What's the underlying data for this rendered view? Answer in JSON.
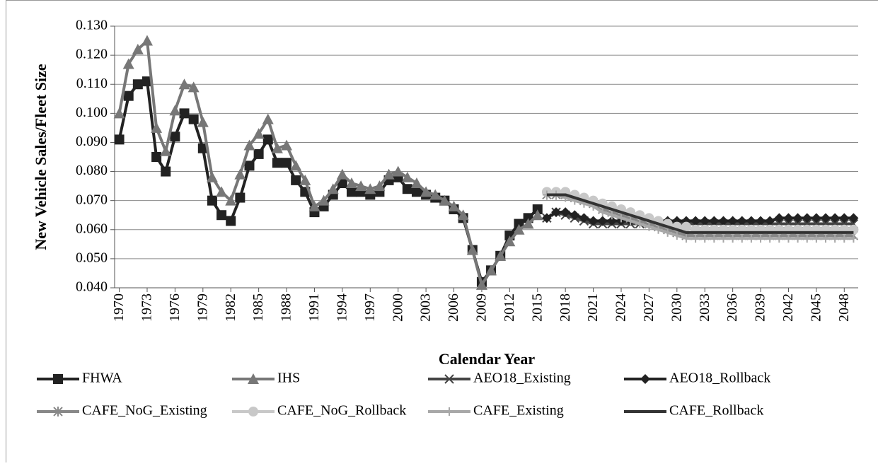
{
  "chart_data": {
    "type": "line",
    "xlabel": "Calendar Year",
    "ylabel": "New Vehicle Sales/Fleet Size",
    "x": [
      1970,
      1971,
      1972,
      1973,
      1974,
      1975,
      1976,
      1977,
      1978,
      1979,
      1980,
      1981,
      1982,
      1983,
      1984,
      1985,
      1986,
      1987,
      1988,
      1989,
      1990,
      1991,
      1992,
      1993,
      1994,
      1995,
      1996,
      1997,
      1998,
      1999,
      2000,
      2001,
      2002,
      2003,
      2004,
      2005,
      2006,
      2007,
      2008,
      2009,
      2010,
      2011,
      2012,
      2013,
      2014,
      2015,
      2016,
      2017,
      2018,
      2019,
      2020,
      2021,
      2022,
      2023,
      2024,
      2025,
      2026,
      2027,
      2028,
      2029,
      2030,
      2031,
      2032,
      2033,
      2034,
      2035,
      2036,
      2037,
      2038,
      2039,
      2040,
      2041,
      2042,
      2043,
      2044,
      2045,
      2046,
      2047,
      2048,
      2049
    ],
    "xlim": [
      1969.5,
      2049.5
    ],
    "xticks": [
      1970,
      1973,
      1976,
      1979,
      1982,
      1985,
      1988,
      1991,
      1994,
      1997,
      2000,
      2003,
      2006,
      2009,
      2012,
      2015,
      2018,
      2021,
      2024,
      2027,
      2030,
      2033,
      2036,
      2039,
      2042,
      2045,
      2048
    ],
    "ylim": [
      0.04,
      0.13
    ],
    "yticks": [
      {
        "value": 0.04,
        "label": "0.040"
      },
      {
        "value": 0.05,
        "label": "0.050"
      },
      {
        "value": 0.06,
        "label": "0.060"
      },
      {
        "value": 0.07,
        "label": "0.070"
      },
      {
        "value": 0.08,
        "label": "0.080"
      },
      {
        "value": 0.09,
        "label": "0.090"
      },
      {
        "value": 0.1,
        "label": "0.100"
      },
      {
        "value": 0.11,
        "label": "0.110"
      },
      {
        "value": 0.12,
        "label": "0.120"
      },
      {
        "value": 0.13,
        "label": "0.130"
      }
    ],
    "grid": true,
    "legend": "bottom",
    "series": [
      {
        "name": "FHWA",
        "color": "#222222",
        "marker": "square",
        "values": [
          0.091,
          0.106,
          0.11,
          0.111,
          0.085,
          0.08,
          0.092,
          0.1,
          0.098,
          0.088,
          0.07,
          0.065,
          0.063,
          0.071,
          0.082,
          0.086,
          0.091,
          0.083,
          0.083,
          0.077,
          0.073,
          0.066,
          0.068,
          0.072,
          0.076,
          0.073,
          0.073,
          0.072,
          0.073,
          0.077,
          0.078,
          0.074,
          0.073,
          0.072,
          0.071,
          0.07,
          0.067,
          0.064,
          0.053,
          0.042,
          0.046,
          0.051,
          0.058,
          0.062,
          0.064,
          0.067,
          null,
          null,
          null,
          null,
          null,
          null,
          null,
          null,
          null,
          null,
          null,
          null,
          null,
          null,
          null,
          null,
          null,
          null,
          null,
          null,
          null,
          null,
          null,
          null,
          null,
          null,
          null,
          null,
          null,
          null,
          null,
          null,
          null,
          null
        ]
      },
      {
        "name": "IHS",
        "color": "#777777",
        "marker": "triangle",
        "values": [
          0.1,
          0.117,
          0.122,
          0.125,
          0.095,
          0.087,
          0.101,
          0.11,
          0.109,
          0.097,
          0.078,
          0.073,
          0.07,
          0.079,
          0.089,
          0.093,
          0.098,
          0.088,
          0.089,
          0.082,
          0.077,
          0.068,
          0.07,
          0.074,
          0.079,
          0.076,
          0.075,
          0.074,
          0.075,
          0.079,
          0.08,
          0.078,
          0.076,
          0.073,
          0.072,
          0.07,
          0.068,
          0.065,
          0.053,
          0.041,
          0.046,
          0.051,
          0.056,
          0.06,
          0.062,
          0.065,
          null,
          null,
          null,
          null,
          null,
          null,
          null,
          null,
          null,
          null,
          null,
          null,
          null,
          null,
          null,
          null,
          null,
          null,
          null,
          null,
          null,
          null,
          null,
          null,
          null,
          null,
          null,
          null,
          null,
          null,
          null,
          null,
          null,
          null
        ]
      },
      {
        "name": "AEO18_Existing",
        "color": "#444444",
        "marker": "x",
        "values": [
          null,
          null,
          null,
          null,
          null,
          null,
          null,
          null,
          null,
          null,
          null,
          null,
          null,
          null,
          null,
          null,
          null,
          null,
          null,
          null,
          null,
          null,
          null,
          null,
          null,
          null,
          null,
          null,
          null,
          null,
          null,
          null,
          null,
          null,
          null,
          null,
          null,
          null,
          null,
          null,
          null,
          null,
          null,
          null,
          null,
          null,
          0.064,
          0.066,
          0.065,
          0.064,
          0.063,
          0.062,
          0.062,
          0.062,
          0.062,
          0.062,
          0.062,
          0.062,
          0.062,
          0.062,
          0.062,
          0.062,
          0.062,
          0.062,
          0.062,
          0.062,
          0.062,
          0.062,
          0.062,
          0.062,
          0.062,
          0.062,
          0.062,
          0.062,
          0.062,
          0.062,
          0.062,
          0.062,
          0.062,
          0.062
        ]
      },
      {
        "name": "AEO18_Rollback",
        "color": "#222222",
        "marker": "diamond",
        "values": [
          null,
          null,
          null,
          null,
          null,
          null,
          null,
          null,
          null,
          null,
          null,
          null,
          null,
          null,
          null,
          null,
          null,
          null,
          null,
          null,
          null,
          null,
          null,
          null,
          null,
          null,
          null,
          null,
          null,
          null,
          null,
          null,
          null,
          null,
          null,
          null,
          null,
          null,
          null,
          null,
          null,
          null,
          null,
          null,
          null,
          null,
          0.064,
          0.066,
          0.066,
          0.065,
          0.064,
          0.063,
          0.063,
          0.063,
          0.063,
          0.063,
          0.063,
          0.063,
          0.063,
          0.063,
          0.063,
          0.063,
          0.063,
          0.063,
          0.063,
          0.063,
          0.063,
          0.063,
          0.063,
          0.063,
          0.063,
          0.064,
          0.064,
          0.064,
          0.064,
          0.064,
          0.064,
          0.064,
          0.064,
          0.064
        ]
      },
      {
        "name": "CAFE_NoG_Existing",
        "color": "#888888",
        "marker": "asterisk",
        "values": [
          null,
          null,
          null,
          null,
          null,
          null,
          null,
          null,
          null,
          null,
          null,
          null,
          null,
          null,
          null,
          null,
          null,
          null,
          null,
          null,
          null,
          null,
          null,
          null,
          null,
          null,
          null,
          null,
          null,
          null,
          null,
          null,
          null,
          null,
          null,
          null,
          null,
          null,
          null,
          null,
          null,
          null,
          null,
          null,
          null,
          null,
          0.072,
          0.072,
          0.072,
          0.071,
          0.07,
          0.069,
          0.067,
          0.066,
          0.065,
          0.064,
          0.063,
          0.062,
          0.061,
          0.06,
          0.059,
          0.058,
          0.058,
          0.058,
          0.058,
          0.058,
          0.058,
          0.058,
          0.058,
          0.058,
          0.058,
          0.058,
          0.058,
          0.058,
          0.058,
          0.058,
          0.058,
          0.058,
          0.058,
          0.058
        ]
      },
      {
        "name": "CAFE_NoG_Rollback",
        "color": "#c8c8c8",
        "marker": "circle",
        "values": [
          null,
          null,
          null,
          null,
          null,
          null,
          null,
          null,
          null,
          null,
          null,
          null,
          null,
          null,
          null,
          null,
          null,
          null,
          null,
          null,
          null,
          null,
          null,
          null,
          null,
          null,
          null,
          null,
          null,
          null,
          null,
          null,
          null,
          null,
          null,
          null,
          null,
          null,
          null,
          null,
          null,
          null,
          null,
          null,
          null,
          null,
          0.073,
          0.073,
          0.073,
          0.072,
          0.071,
          0.07,
          0.069,
          0.068,
          0.067,
          0.066,
          0.065,
          0.064,
          0.063,
          0.062,
          0.061,
          0.061,
          0.06,
          0.06,
          0.06,
          0.06,
          0.06,
          0.06,
          0.06,
          0.06,
          0.06,
          0.06,
          0.06,
          0.06,
          0.06,
          0.06,
          0.06,
          0.06,
          0.06,
          0.06
        ]
      },
      {
        "name": "CAFE_Existing",
        "color": "#a8a8a8",
        "marker": "plus",
        "values": [
          null,
          null,
          null,
          null,
          null,
          null,
          null,
          null,
          null,
          null,
          null,
          null,
          null,
          null,
          null,
          null,
          null,
          null,
          null,
          null,
          null,
          null,
          null,
          null,
          null,
          null,
          null,
          null,
          null,
          null,
          null,
          null,
          null,
          null,
          null,
          null,
          null,
          null,
          null,
          null,
          null,
          null,
          null,
          null,
          null,
          null,
          0.072,
          0.072,
          0.071,
          0.07,
          0.069,
          0.068,
          0.066,
          0.065,
          0.064,
          0.063,
          0.062,
          0.061,
          0.06,
          0.059,
          0.058,
          0.057,
          0.057,
          0.057,
          0.057,
          0.057,
          0.057,
          0.057,
          0.057,
          0.057,
          0.057,
          0.057,
          0.057,
          0.057,
          0.057,
          0.057,
          0.057,
          0.057,
          0.057,
          0.057
        ]
      },
      {
        "name": "CAFE_Rollback",
        "color": "#333333",
        "marker": "none",
        "values": [
          null,
          null,
          null,
          null,
          null,
          null,
          null,
          null,
          null,
          null,
          null,
          null,
          null,
          null,
          null,
          null,
          null,
          null,
          null,
          null,
          null,
          null,
          null,
          null,
          null,
          null,
          null,
          null,
          null,
          null,
          null,
          null,
          null,
          null,
          null,
          null,
          null,
          null,
          null,
          null,
          null,
          null,
          null,
          null,
          null,
          null,
          0.072,
          0.072,
          0.072,
          0.071,
          0.07,
          0.069,
          0.068,
          0.067,
          0.066,
          0.065,
          0.064,
          0.063,
          0.062,
          0.061,
          0.06,
          0.059,
          0.059,
          0.059,
          0.059,
          0.059,
          0.059,
          0.059,
          0.059,
          0.059,
          0.059,
          0.059,
          0.059,
          0.059,
          0.059,
          0.059,
          0.059,
          0.059,
          0.059,
          0.059
        ]
      }
    ]
  }
}
